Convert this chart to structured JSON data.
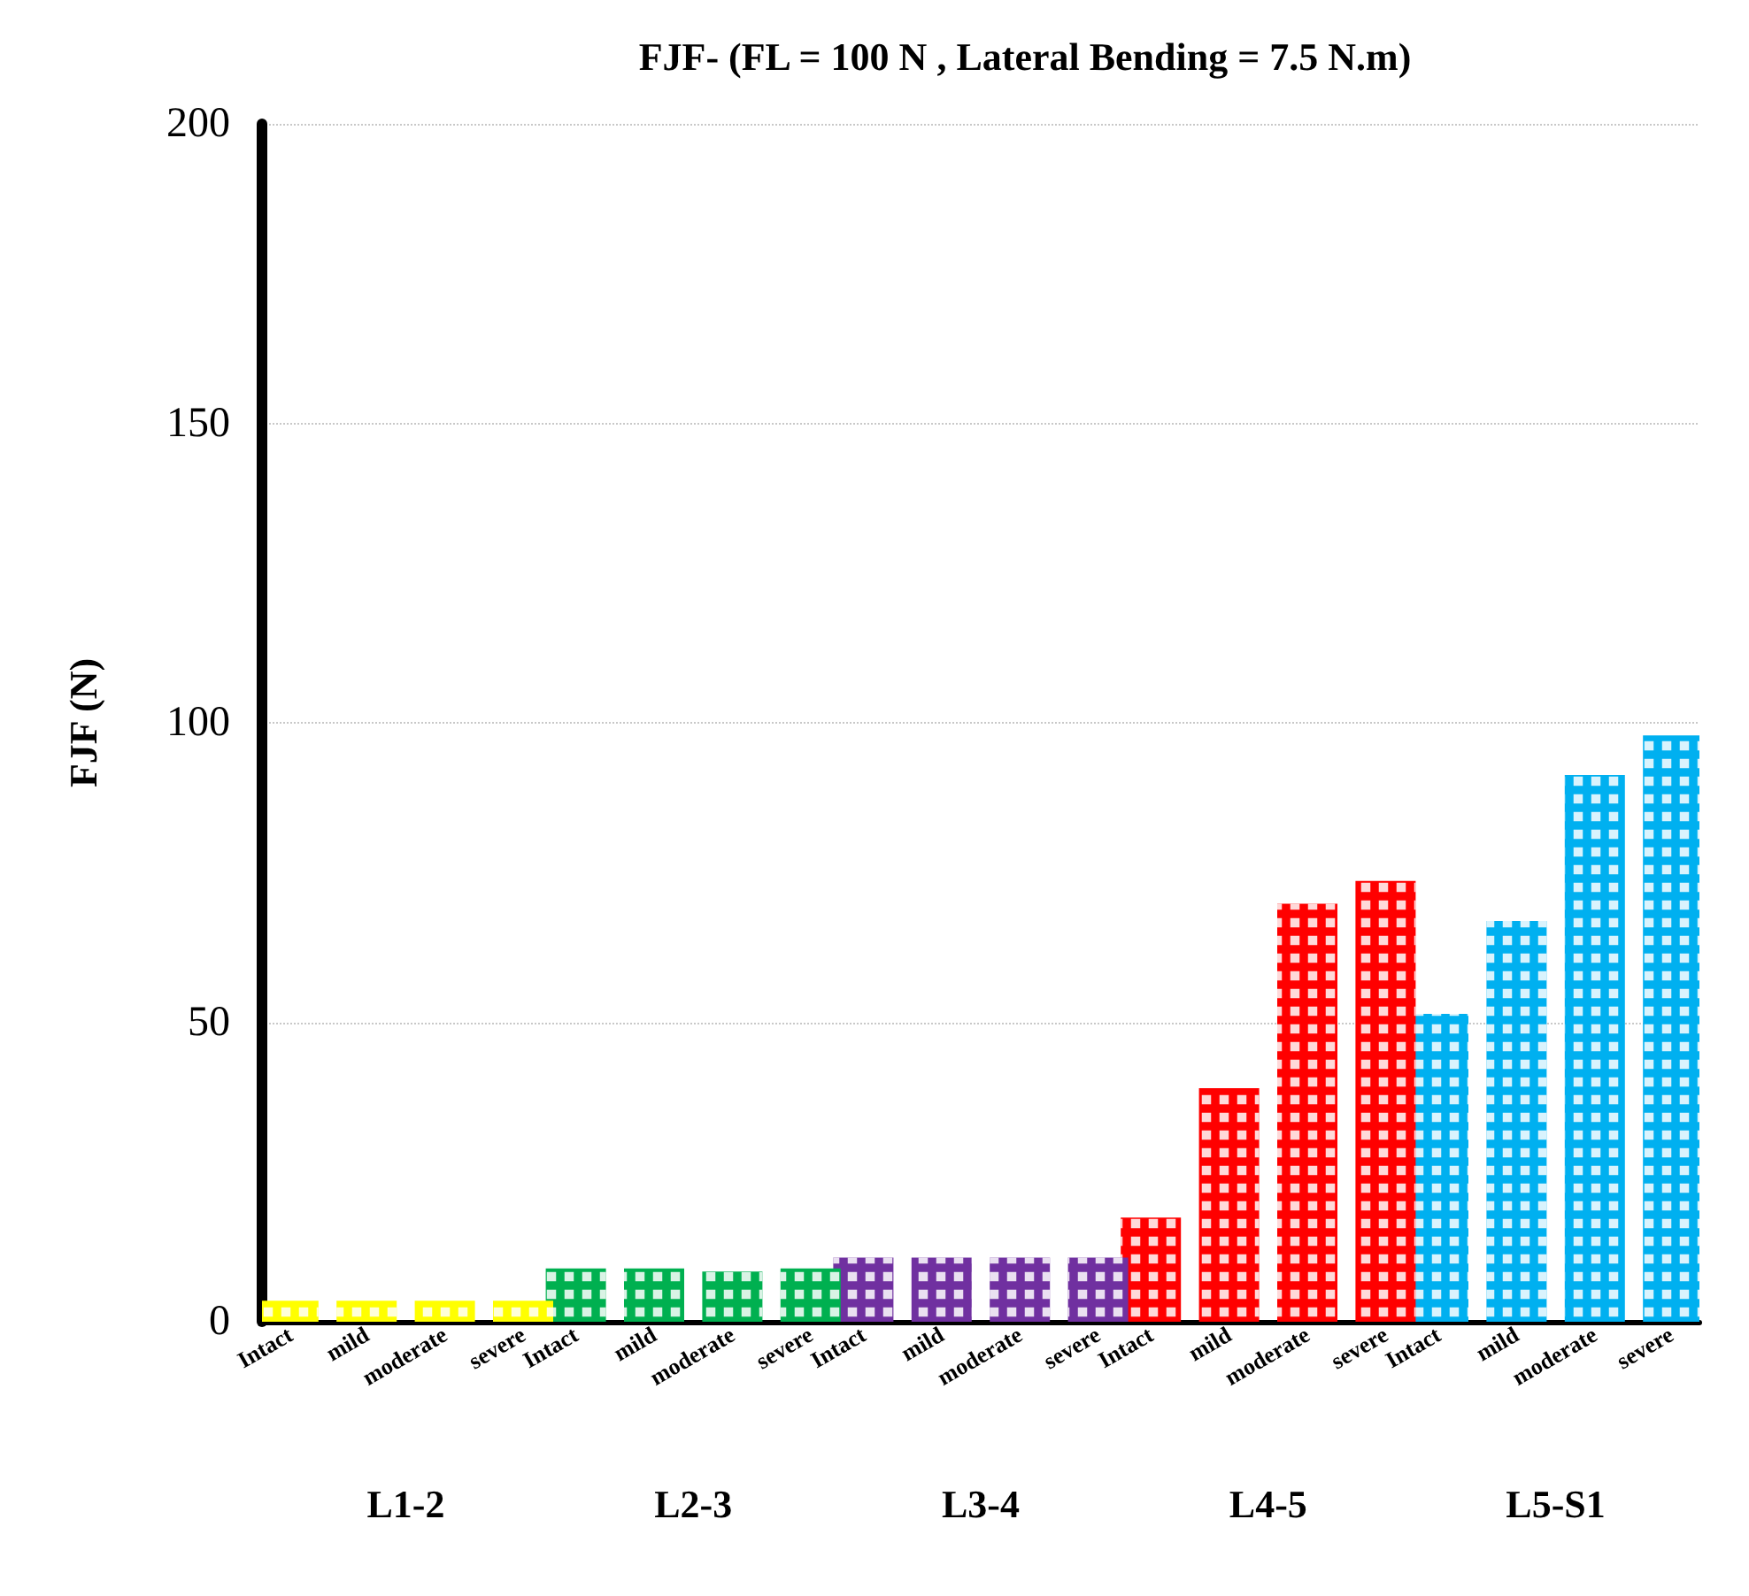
{
  "chart_data": {
    "type": "bar",
    "title": "FJF- (FL = 100 N , Lateral Bending = 7.5 N.m)",
    "ylabel": "FJF (N)",
    "categories": [
      "L1-2",
      "L2-3",
      "L3-4",
      "L4-5",
      "L5-S1"
    ],
    "series": [
      {
        "name": "Intact",
        "colors": [
          "#ffff00",
          "#00b050",
          "#7030a0",
          "#ff0000",
          "#00b0f0"
        ],
        "values": [
          3.5,
          8.9,
          10.7,
          17.4,
          51.4
        ]
      },
      {
        "name": "mild",
        "colors": [
          "#ffff00",
          "#00b050",
          "#7030a0",
          "#ff0000",
          "#00b0f0"
        ],
        "values": [
          3.5,
          8.9,
          10.7,
          39,
          66.9
        ]
      },
      {
        "name": "moderate",
        "colors": [
          "#ffff00",
          "#00b050",
          "#7030a0",
          "#ff0000",
          "#00b0f0"
        ],
        "values": [
          3.5,
          8.4,
          10.7,
          69.8,
          91.3
        ]
      },
      {
        "name": "severe",
        "colors": [
          "#ffff00",
          "#00b050",
          "#7030a0",
          "#ff0000",
          "#00b0f0"
        ],
        "values": [
          3.5,
          8.9,
          10.7,
          73.6,
          97.9
        ]
      }
    ],
    "ylim": [
      0,
      200
    ],
    "yticks": [
      0,
      50,
      100,
      150,
      200
    ],
    "grid": "y",
    "legend": false
  }
}
